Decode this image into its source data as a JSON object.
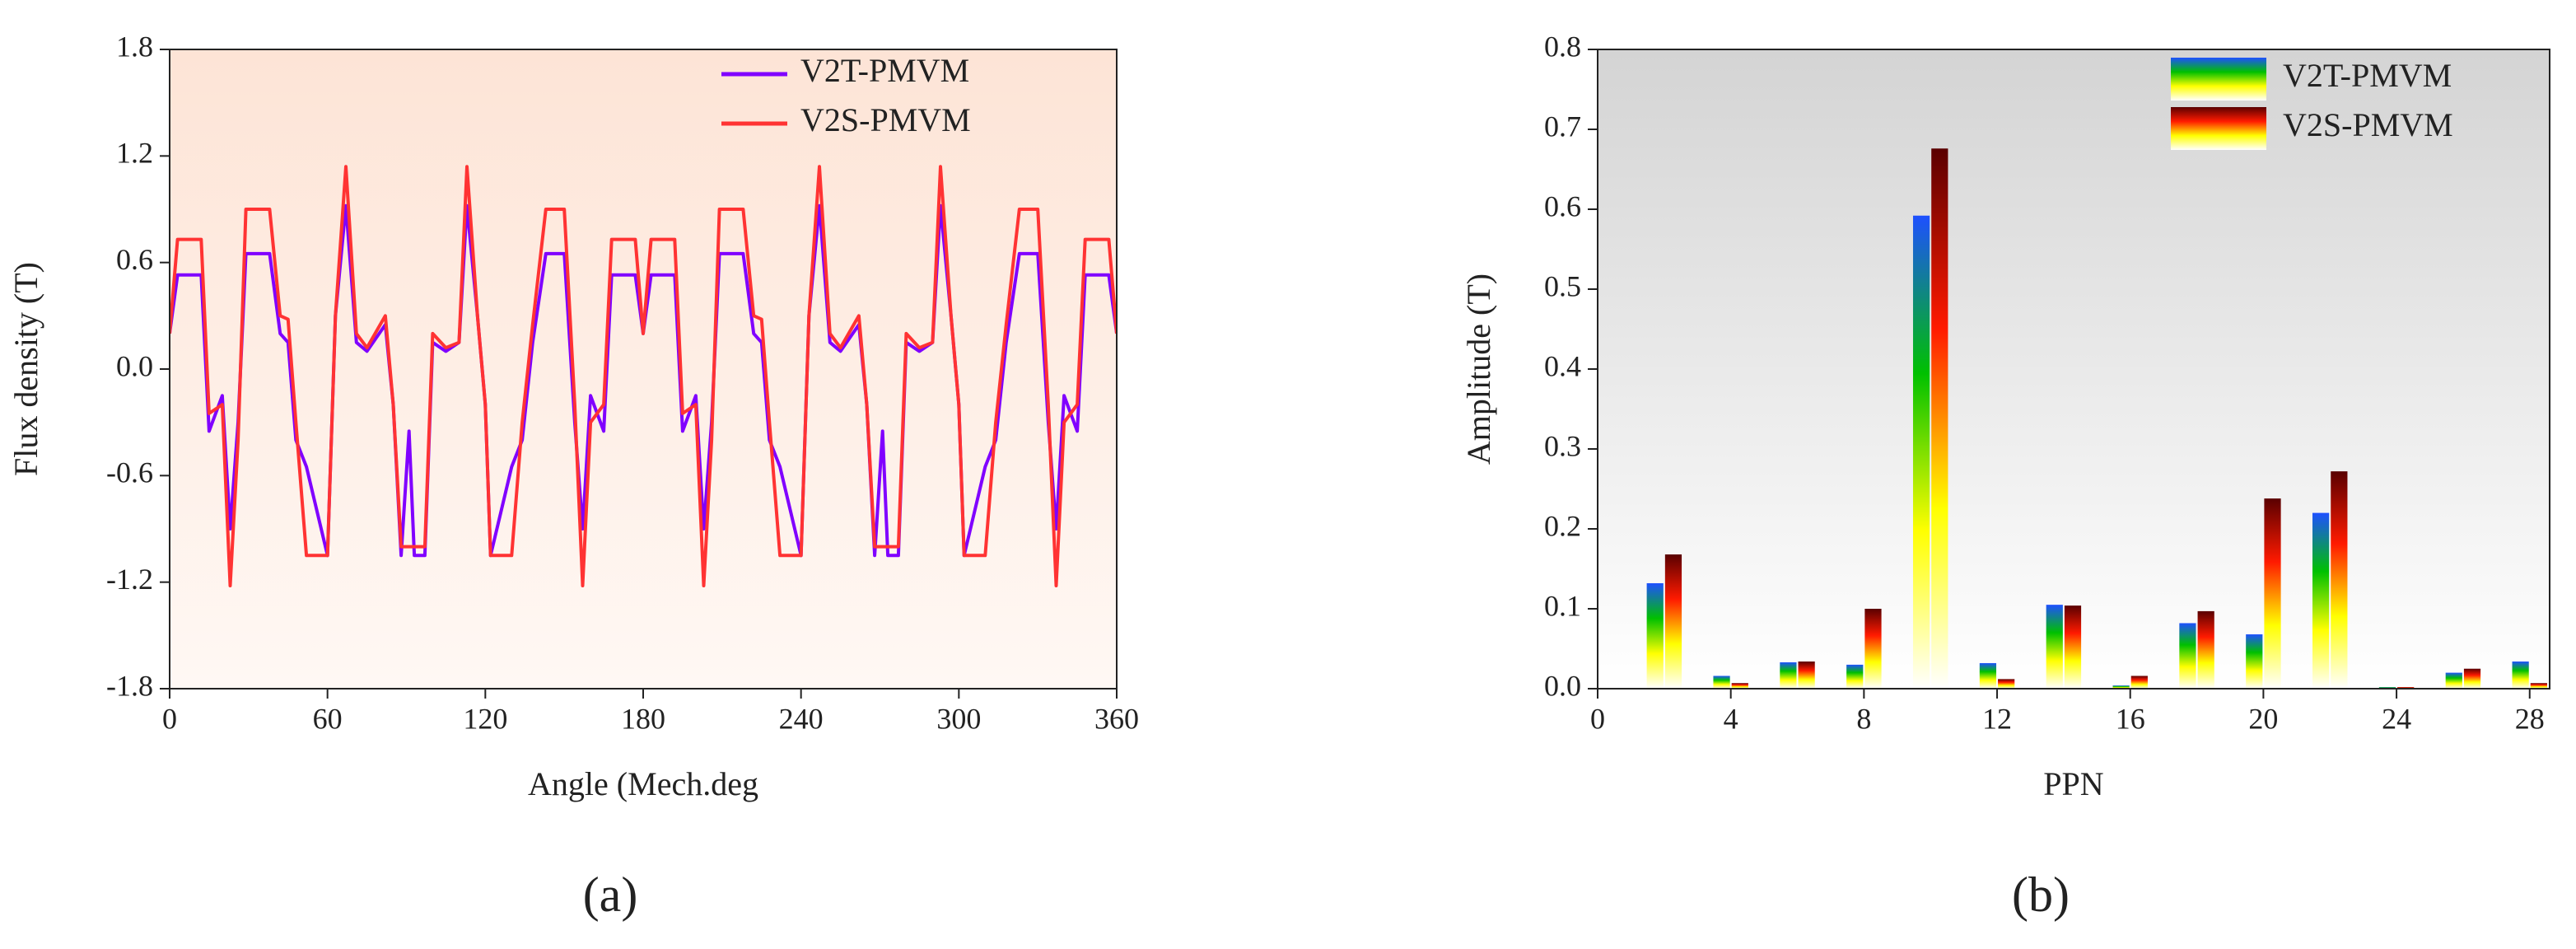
{
  "chart_data": [
    {
      "type": "line",
      "xlabel": "Angle (Mech.deg",
      "ylabel": "Flux density (T)",
      "caption": "(a)",
      "xlim": [
        0,
        360
      ],
      "xticks": [
        0,
        60,
        120,
        180,
        240,
        300,
        360
      ],
      "ylim": [
        -1.8,
        1.8
      ],
      "yticks": [
        -1.8,
        -1.2,
        -0.6,
        {
          "value": 0,
          "label": "0.0"
        },
        0.6,
        1.2,
        1.8
      ],
      "legend": "upper right",
      "x": [
        0,
        3,
        12,
        15,
        20,
        23,
        26,
        29,
        38,
        42,
        45,
        48,
        52,
        60,
        63,
        67,
        71,
        75,
        82,
        85,
        88,
        91,
        93,
        97,
        100,
        105,
        110,
        113,
        117,
        120,
        122,
        130,
        134,
        138,
        143,
        150,
        154,
        157,
        160,
        165,
        168,
        177,
        180,
        183,
        192,
        195,
        200,
        203,
        206,
        209,
        218,
        222,
        225,
        228,
        232,
        240,
        243,
        247,
        251,
        255,
        262,
        265,
        268,
        271,
        273,
        277,
        280,
        285,
        290,
        293,
        297,
        300,
        302,
        310,
        314,
        318,
        323,
        330,
        334,
        337,
        340,
        345,
        348,
        357,
        360
      ],
      "series": [
        {
          "name": "V2T-PMVM",
          "color": "#8000ff",
          "values": [
            0.2,
            0.53,
            0.53,
            -0.35,
            -0.15,
            -0.9,
            -0.3,
            0.65,
            0.65,
            0.2,
            0.15,
            -0.4,
            -0.55,
            -1.05,
            0.3,
            0.92,
            0.15,
            0.1,
            0.25,
            -0.2,
            -1.05,
            -0.35,
            -1.05,
            -1.05,
            0.15,
            0.1,
            0.15,
            0.92,
            0.3,
            -0.2,
            -1.05,
            -0.55,
            -0.4,
            0.15,
            0.65,
            0.65,
            -0.3,
            -0.9,
            -0.15,
            -0.35,
            0.53,
            0.53,
            0.2,
            0.53,
            0.53,
            -0.35,
            -0.15,
            -0.9,
            -0.3,
            0.65,
            0.65,
            0.2,
            0.15,
            -0.4,
            -0.55,
            -1.05,
            0.3,
            0.92,
            0.15,
            0.1,
            0.25,
            -0.2,
            -1.05,
            -0.35,
            -1.05,
            -1.05,
            0.15,
            0.1,
            0.15,
            0.92,
            0.3,
            -0.2,
            -1.05,
            -0.55,
            -0.4,
            0.15,
            0.65,
            0.65,
            -0.3,
            -0.9,
            -0.15,
            -0.35,
            0.53,
            0.53,
            0.2
          ]
        },
        {
          "name": "V2S-PMVM",
          "color": "#ff3333",
          "values": [
            0.2,
            0.73,
            0.73,
            -0.25,
            -0.2,
            -1.22,
            -0.4,
            0.9,
            0.9,
            0.3,
            0.28,
            -0.3,
            -1.05,
            -1.05,
            0.3,
            1.14,
            0.2,
            0.12,
            0.3,
            -0.2,
            -1.0,
            -1.0,
            -1.0,
            -1.0,
            0.2,
            0.12,
            0.15,
            1.14,
            0.3,
            -0.2,
            -1.05,
            -1.05,
            -0.3,
            0.25,
            0.9,
            0.9,
            -0.2,
            -1.22,
            -0.3,
            -0.2,
            0.73,
            0.73,
            0.2,
            0.73,
            0.73,
            -0.25,
            -0.2,
            -1.22,
            -0.4,
            0.9,
            0.9,
            0.3,
            0.28,
            -0.3,
            -1.05,
            -1.05,
            0.3,
            1.14,
            0.2,
            0.12,
            0.3,
            -0.2,
            -1.0,
            -1.0,
            -1.0,
            -1.0,
            0.2,
            0.12,
            0.15,
            1.14,
            0.3,
            -0.2,
            -1.05,
            -1.05,
            -0.3,
            0.25,
            0.9,
            0.9,
            -0.2,
            -1.22,
            -0.3,
            -0.2,
            0.73,
            0.73,
            0.2
          ]
        }
      ]
    },
    {
      "type": "bar",
      "xlabel": "PPN",
      "ylabel": "Amplitude (T)",
      "caption": "(b)",
      "xlim": [
        0,
        28.6
      ],
      "xticks": [
        0,
        4,
        8,
        12,
        16,
        20,
        24,
        28
      ],
      "ylim": [
        0,
        0.8
      ],
      "yticks": [
        {
          "value": 0,
          "label": "0.0"
        },
        0.1,
        0.2,
        0.3,
        0.4,
        0.5,
        0.6,
        0.7,
        0.8
      ],
      "legend": "upper right",
      "x": [
        2,
        4,
        6,
        8,
        10,
        12,
        14,
        16,
        18,
        20,
        22,
        24,
        26,
        28
      ],
      "series": [
        {
          "name": "V2T-PMVM",
          "color": [
            "#1e50ff",
            "#00c000",
            "#ffff00",
            "#ffffff"
          ],
          "values": [
            0.132,
            0.016,
            0.033,
            0.03,
            0.592,
            0.032,
            0.105,
            0.004,
            0.082,
            0.068,
            0.22,
            0.002,
            0.02,
            0.034
          ]
        },
        {
          "name": "V2S-PMVM",
          "color": [
            "#5a0000",
            "#ff1a00",
            "#ffff00",
            "#ffffff"
          ],
          "values": [
            0.168,
            0.007,
            0.034,
            0.1,
            0.676,
            0.012,
            0.104,
            0.016,
            0.097,
            0.238,
            0.272,
            0.002,
            0.025,
            0.007
          ]
        }
      ]
    }
  ]
}
